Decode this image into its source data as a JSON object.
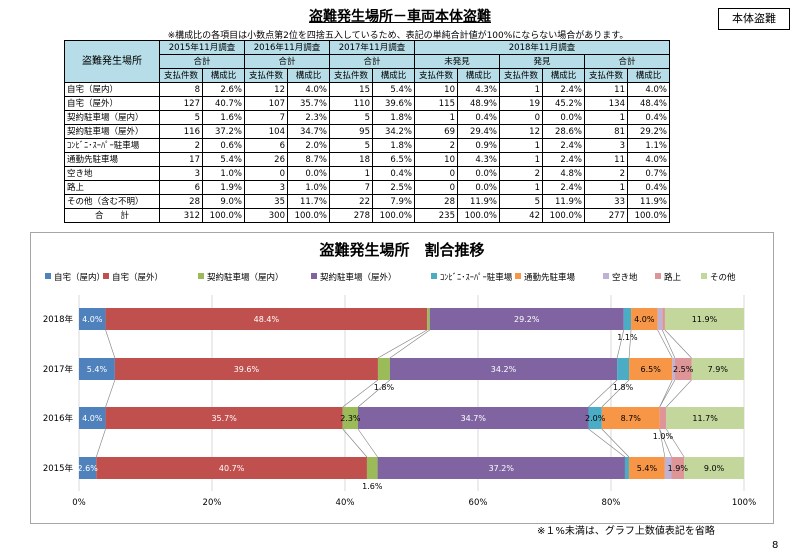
{
  "header": {
    "title": "盗難発生場所－車両本体盗難",
    "badge": "本体盗難",
    "note": "※構成比の各項目は小数点第2位を四捨五入しているため、表記の単純合計値が100%にならない場合があります。"
  },
  "table": {
    "row_header": "盗難発生場所",
    "years": [
      "2015年11月調査",
      "2016年11月調査",
      "2017年11月調査",
      "2018年11月調査"
    ],
    "group_labels": [
      "合計",
      "合計",
      "合計",
      "未発見",
      "発見",
      "合計"
    ],
    "col_count": "支払件数",
    "col_ratio": "構成比",
    "rows": [
      {
        "label": "自宅（屋内）",
        "cells": [
          "8",
          "2.6%",
          "12",
          "4.0%",
          "15",
          "5.4%",
          "10",
          "4.3%",
          "1",
          "2.4%",
          "11",
          "4.0%"
        ]
      },
      {
        "label": "自宅（屋外）",
        "cells": [
          "127",
          "40.7%",
          "107",
          "35.7%",
          "110",
          "39.6%",
          "115",
          "48.9%",
          "19",
          "45.2%",
          "134",
          "48.4%"
        ]
      },
      {
        "label": "契約駐車場（屋内）",
        "cells": [
          "5",
          "1.6%",
          "7",
          "2.3%",
          "5",
          "1.8%",
          "1",
          "0.4%",
          "0",
          "0.0%",
          "1",
          "0.4%"
        ]
      },
      {
        "label": "契約駐車場（屋外）",
        "cells": [
          "116",
          "37.2%",
          "104",
          "34.7%",
          "95",
          "34.2%",
          "69",
          "29.4%",
          "12",
          "28.6%",
          "81",
          "29.2%"
        ]
      },
      {
        "label": "ｺﾝﾋﾞﾆ･ｽｰﾊﾟｰ駐車場",
        "cells": [
          "2",
          "0.6%",
          "6",
          "2.0%",
          "5",
          "1.8%",
          "2",
          "0.9%",
          "1",
          "2.4%",
          "3",
          "1.1%"
        ]
      },
      {
        "label": "通勤先駐車場",
        "cells": [
          "17",
          "5.4%",
          "26",
          "8.7%",
          "18",
          "6.5%",
          "10",
          "4.3%",
          "1",
          "2.4%",
          "11",
          "4.0%"
        ]
      },
      {
        "label": "空き地",
        "cells": [
          "3",
          "1.0%",
          "0",
          "0.0%",
          "1",
          "0.4%",
          "0",
          "0.0%",
          "2",
          "4.8%",
          "2",
          "0.7%"
        ]
      },
      {
        "label": "路上",
        "cells": [
          "6",
          "1.9%",
          "3",
          "1.0%",
          "7",
          "2.5%",
          "0",
          "0.0%",
          "1",
          "2.4%",
          "1",
          "0.4%"
        ]
      },
      {
        "label": "その他（含む不明）",
        "cells": [
          "28",
          "9.0%",
          "35",
          "11.7%",
          "22",
          "7.9%",
          "28",
          "11.9%",
          "5",
          "11.9%",
          "33",
          "11.9%"
        ]
      }
    ],
    "total": {
      "label": "合　　計",
      "cells": [
        "312",
        "100.0%",
        "300",
        "100.0%",
        "278",
        "100.0%",
        "235",
        "100.0%",
        "42",
        "100.0%",
        "277",
        "100.0%"
      ]
    }
  },
  "chart_data": {
    "type": "bar",
    "orientation": "horizontal",
    "stacked": "percent",
    "title": "盗難発生場所　割合推移",
    "categories": [
      "2018年",
      "2017年",
      "2016年",
      "2015年"
    ],
    "xlim": [
      0,
      100
    ],
    "x_ticks": [
      "0%",
      "20%",
      "40%",
      "60%",
      "80%",
      "100%"
    ],
    "grid": "vertical",
    "legend_position": "top",
    "series": [
      {
        "name": "自宅（屋内）",
        "color": "#4f81bd",
        "values": [
          4.0,
          5.4,
          4.0,
          2.6
        ],
        "labels": [
          "4.0%",
          "5.4%",
          "4.0%",
          "2.6%"
        ]
      },
      {
        "name": "自宅（屋外）",
        "color": "#c0504d",
        "values": [
          48.4,
          39.6,
          35.7,
          40.7
        ],
        "labels": [
          "48.4%",
          "39.6%",
          "35.7%",
          "40.7%"
        ]
      },
      {
        "name": "契約駐車場（屋内）",
        "color": "#9bbb59",
        "values": [
          0.4,
          1.8,
          2.3,
          1.6
        ],
        "labels": [
          "",
          "1.8%",
          "2.3%",
          "1.6%"
        ]
      },
      {
        "name": "契約駐車場（屋外）",
        "color": "#8064a2",
        "values": [
          29.2,
          34.2,
          34.7,
          37.2
        ],
        "labels": [
          "29.2%",
          "34.2%",
          "34.7%",
          "37.2%"
        ]
      },
      {
        "name": "ｺﾝﾋﾞﾆ･ｽｰﾊﾟｰ駐車場",
        "color": "#4bacc6",
        "values": [
          1.1,
          1.8,
          2.0,
          0.6
        ],
        "labels": [
          "1.1%",
          "1.8%",
          "2.0%",
          ""
        ]
      },
      {
        "name": "通勤先駐車場",
        "color": "#f79646",
        "values": [
          4.0,
          6.5,
          8.7,
          5.4
        ],
        "labels": [
          "4.0%",
          "6.5%",
          "8.7%",
          "5.4%"
        ]
      },
      {
        "name": "空き地",
        "color": "#bfb2d4",
        "values": [
          0.7,
          0.4,
          0.0,
          1.0
        ],
        "labels": [
          "",
          "",
          "",
          ""
        ]
      },
      {
        "name": "路上",
        "color": "#dd9597",
        "values": [
          0.4,
          2.5,
          1.0,
          1.9
        ],
        "labels": [
          "",
          "2.5%",
          "1.0%",
          "1.9%"
        ]
      },
      {
        "name": "その他",
        "color": "#c3d69b",
        "values": [
          11.9,
          7.9,
          11.7,
          9.0
        ],
        "labels": [
          "11.9%",
          "7.9%",
          "11.7%",
          "9.0%"
        ]
      }
    ]
  },
  "footnote": "※１%未満は、グラフ上数値表記を省略",
  "page_number": "8"
}
